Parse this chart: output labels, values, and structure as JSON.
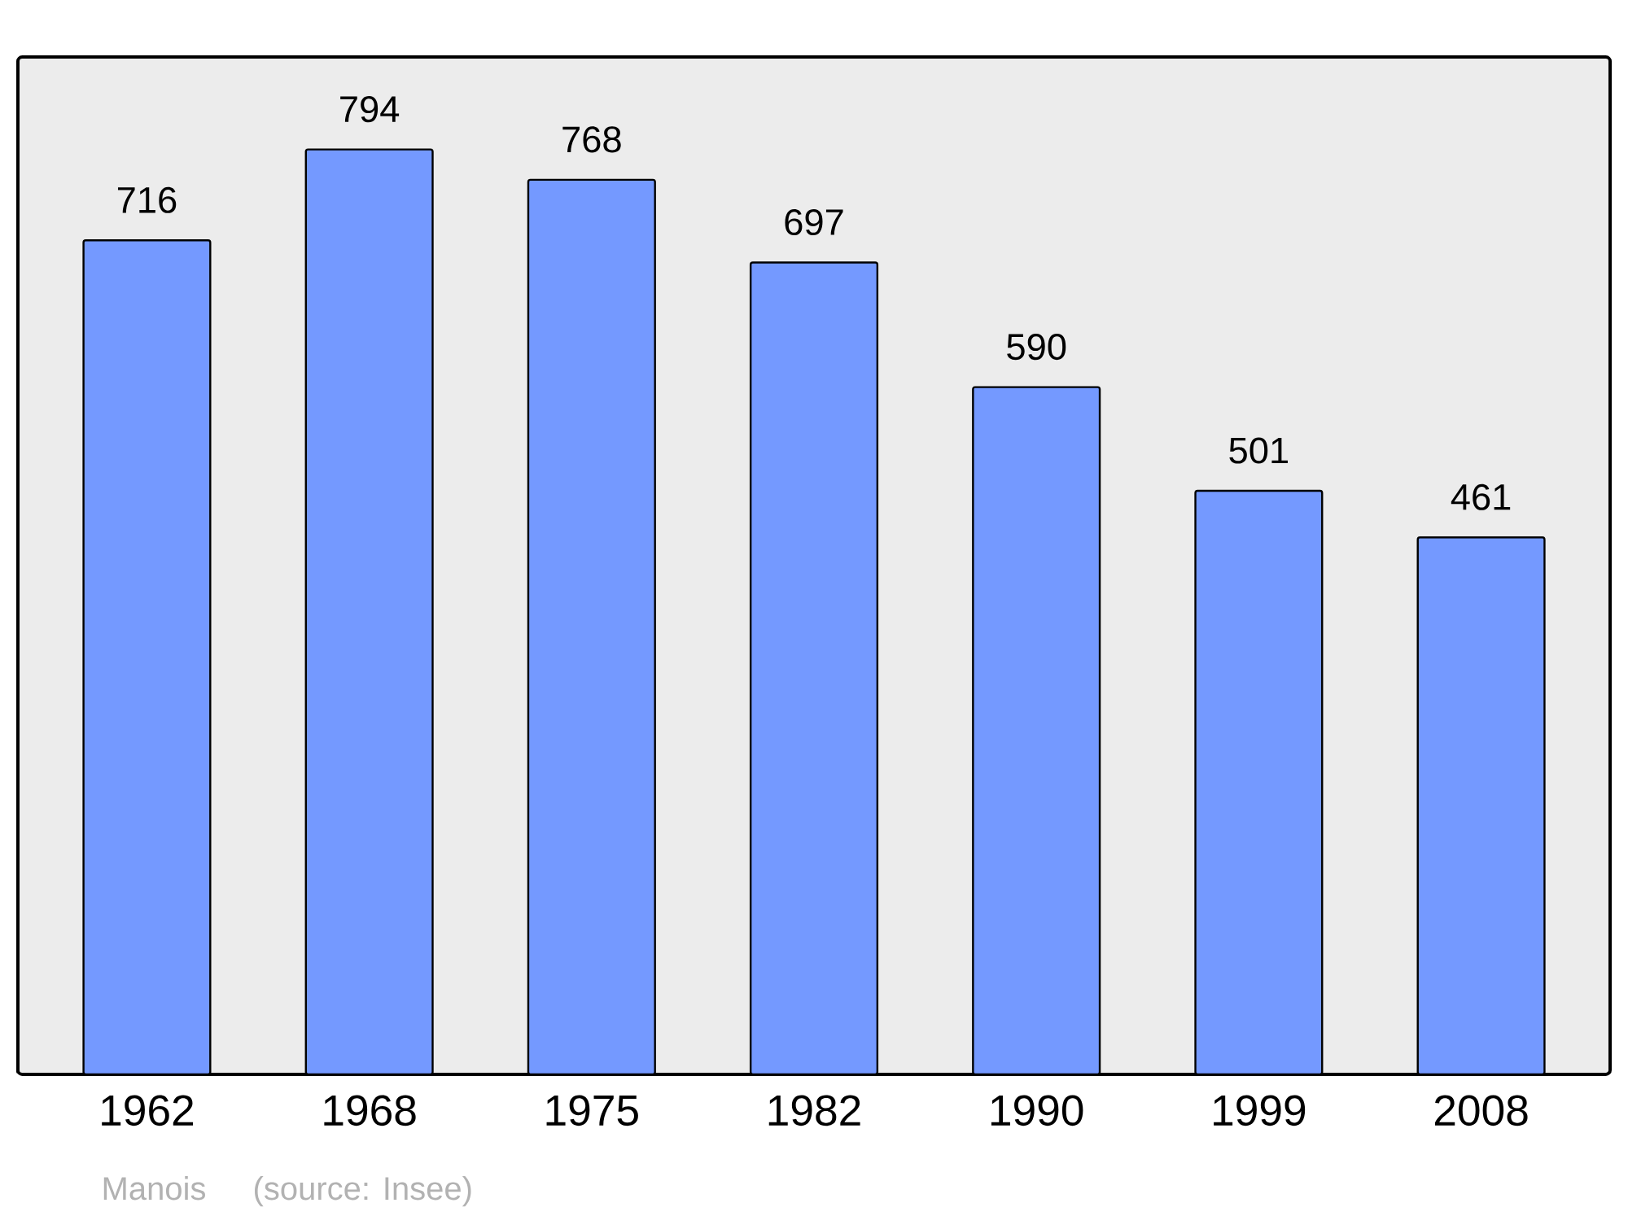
{
  "chart_data": {
    "type": "bar",
    "categories": [
      "1962",
      "1968",
      "1975",
      "1982",
      "1990",
      "1999",
      "2008"
    ],
    "values": [
      716,
      794,
      768,
      697,
      590,
      501,
      461
    ],
    "color": "#7499ff",
    "data_labels": true,
    "annotations": [
      "Manois",
      "(source: Insee)"
    ]
  }
}
